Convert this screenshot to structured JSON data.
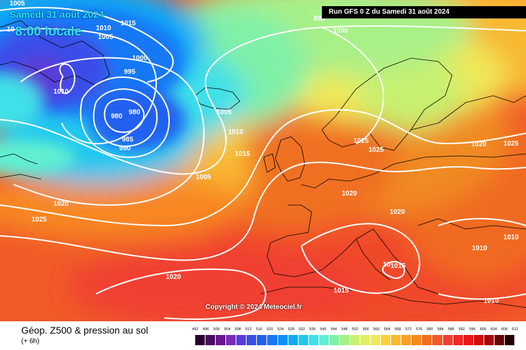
{
  "header": {
    "date": "Samedi 31 août 2024",
    "time": "8:00 locale",
    "run": "Run GFS 0 Z du Samedi 31 août 2024"
  },
  "copyright": "Copyright © 2024 Meteociel.fr",
  "footer": {
    "title": "Géop. Z500 & pression au sol",
    "subtitle": "(+ 6h)"
  },
  "scale": {
    "values": [
      "492",
      "496",
      "500",
      "504",
      "508",
      "512",
      "516",
      "520",
      "524",
      "528",
      "532",
      "536",
      "540",
      "544",
      "548",
      "552",
      "556",
      "560",
      "564",
      "568",
      "572",
      "576",
      "580",
      "584",
      "588",
      "592",
      "596",
      "600",
      "604",
      "608",
      "612"
    ],
    "colors": [
      "#2a0030",
      "#4a0a60",
      "#6a1490",
      "#7a2ab8",
      "#5a3cd8",
      "#3a4ee8",
      "#2060f0",
      "#1878f5",
      "#1090f8",
      "#10aaf8",
      "#20c8f0",
      "#40e0e8",
      "#60f0d0",
      "#80f0a8",
      "#a8f088",
      "#c8f070",
      "#e0f060",
      "#f0e858",
      "#f8d040",
      "#f8b830",
      "#f8a028",
      "#f88820",
      "#f07020",
      "#f05828",
      "#f04030",
      "#f02828",
      "#e81818",
      "#d00c0c",
      "#a80808",
      "#680404",
      "#200000"
    ]
  },
  "isobars": [
    "1005",
    "10",
    "1010",
    "1005",
    "1015",
    "1000",
    "995",
    "1010",
    "980",
    "980",
    "985",
    "990",
    "995",
    "1000",
    "1005",
    "1010",
    "1015",
    "1005",
    "1020",
    "1025",
    "1025",
    "1025",
    "1020",
    "1025",
    "1020",
    "1020",
    "1010",
    "1010",
    "1015",
    "10",
    "1015",
    "1020",
    "1010"
  ]
}
